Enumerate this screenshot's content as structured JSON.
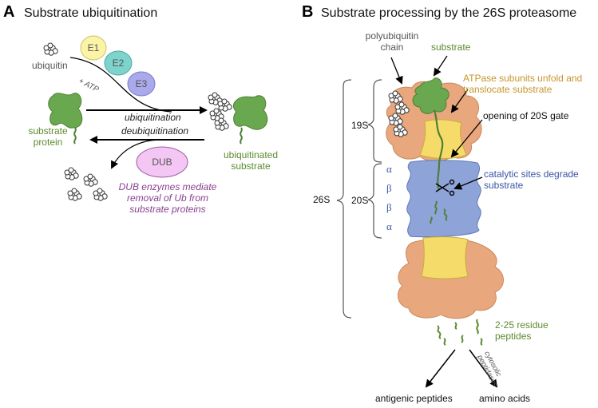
{
  "panelA": {
    "letter": "A",
    "title": "Substrate ubiquitination",
    "ubiquitin": "ubiquitin",
    "e1": "E1",
    "e2": "E2",
    "e3": "E3",
    "atp": "+ ATP",
    "ubiquitination": "ubiquitination",
    "deubiquitination": "deubiquitination",
    "substrate_protein": [
      "substrate",
      "protein"
    ],
    "ubiquitinated_substrate": [
      "ubiquitinated",
      "substrate"
    ],
    "dub": "DUB",
    "dub_note": [
      "DUB enzymes mediate",
      "removal of Ub from",
      "substrate proteins"
    ]
  },
  "panelB": {
    "letter": "B",
    "title": "Substrate processing by the 26S proteasome",
    "polyubiquitin": [
      "polyubiquitin",
      "chain"
    ],
    "substrate": "substrate",
    "atpase": [
      "ATPase subunits unfold and",
      "translocate substrate"
    ],
    "gate": "opening of 20S gate",
    "catalytic": [
      "catalytic sites degrade",
      "substrate"
    ],
    "label_26s": "26S",
    "label_19s": "19S",
    "label_20s": "20S",
    "alpha": "α",
    "beta": "β",
    "peptides": [
      "2-25 residue",
      "peptides"
    ],
    "cytosolic": [
      "cytosolic",
      "peptidases"
    ],
    "antigenic": "antigenic peptides",
    "amino_acids": "amino acids"
  },
  "colors": {
    "substrate_green": "#6aa84f",
    "atpase_orange": "#e8a77d",
    "core_blue": "#8ea4d8",
    "gate_yellow": "#f5dc6a",
    "e1_yellow": "#fbf4a6",
    "e2_teal": "#7fd3cd",
    "e3_violet": "#a9a9ec",
    "dub_pink": "#f3c6f3"
  }
}
